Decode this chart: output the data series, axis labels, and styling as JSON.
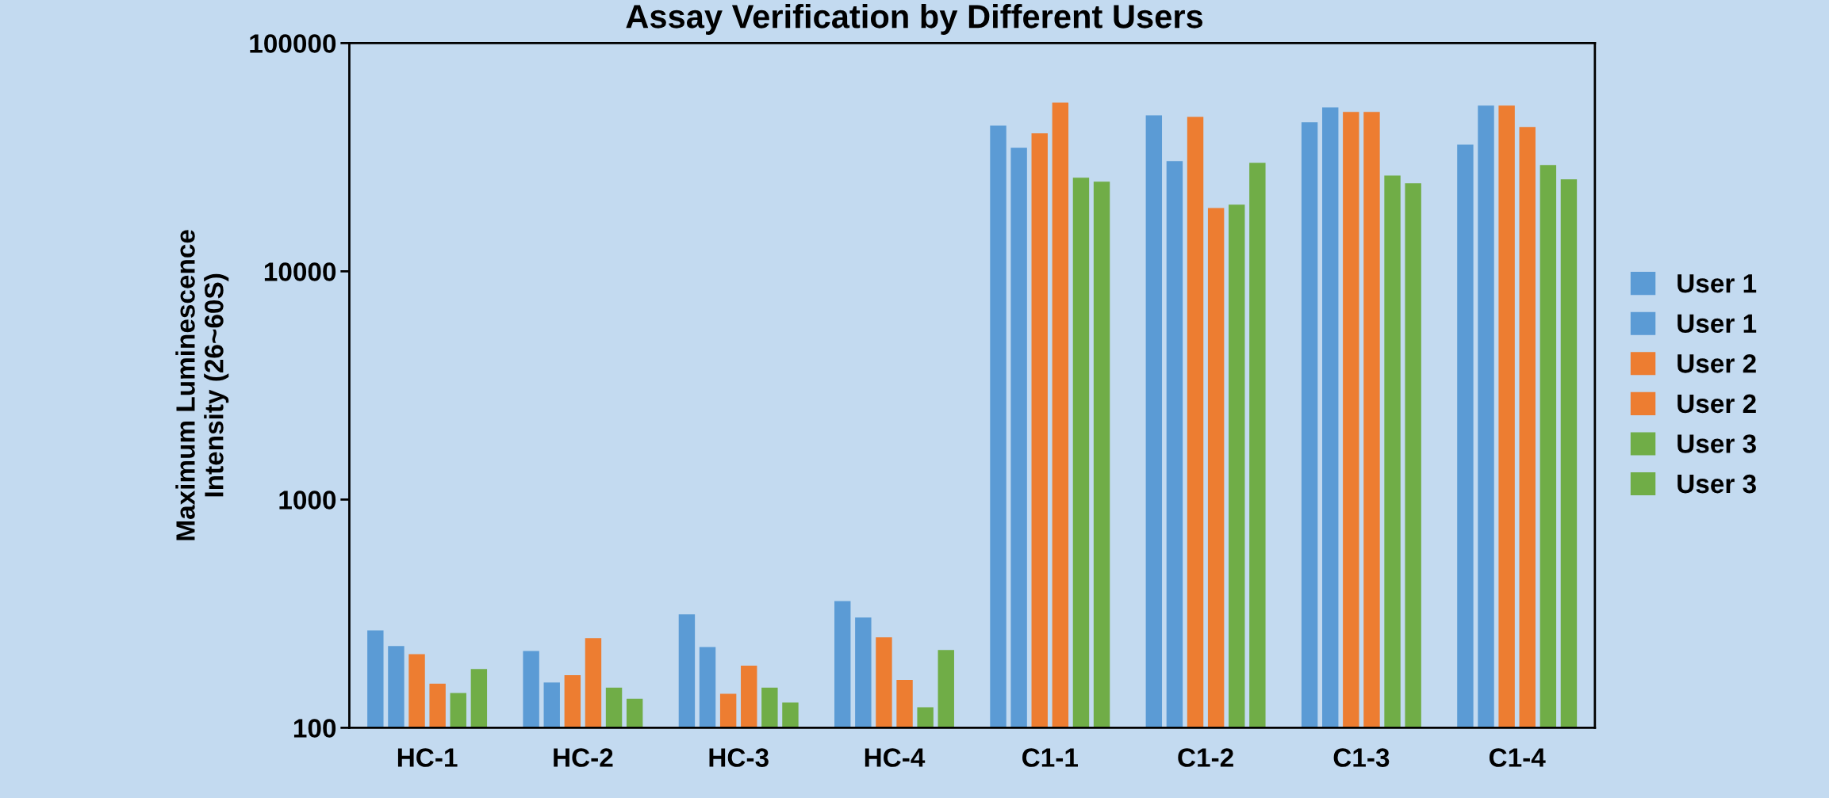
{
  "chart_data": {
    "type": "bar",
    "title": "Assay Verification by Different Users",
    "ylabel": "Maximum Luminescence\nIntensity (26~60S)",
    "categories": [
      "HC-1",
      "HC-2",
      "HC-3",
      "HC-4",
      "C1-1",
      "C1-2",
      "C1-3",
      "C1-4"
    ],
    "series": [
      {
        "name": "User 1",
        "color": "#5b9bd5",
        "values": [
          267,
          217,
          314,
          359,
          43500,
          48300,
          45000,
          35900
        ]
      },
      {
        "name": "User 1",
        "color": "#5b9bd5",
        "values": [
          228,
          158,
          226,
          304,
          34800,
          30400,
          52300,
          53200
        ]
      },
      {
        "name": "User 2",
        "color": "#ed7d31",
        "values": [
          210,
          170,
          141,
          249,
          40200,
          47500,
          49900,
          53200
        ]
      },
      {
        "name": "User 2",
        "color": "#ed7d31",
        "values": [
          156,
          247,
          187,
          162,
          54900,
          18950,
          49900,
          42900
        ]
      },
      {
        "name": "User 3",
        "color": "#70ad47",
        "values": [
          142,
          150,
          150,
          123,
          25700,
          19600,
          26300,
          29200
        ]
      },
      {
        "name": "User 3",
        "color": "#70ad47",
        "values": [
          181,
          134,
          129,
          219,
          24700,
          29900,
          24300,
          25300
        ]
      }
    ],
    "log": "y",
    "ylim": [
      100,
      100000
    ],
    "yticks": [
      100,
      1000,
      10000,
      100000
    ],
    "grid": false,
    "legend": "right"
  }
}
